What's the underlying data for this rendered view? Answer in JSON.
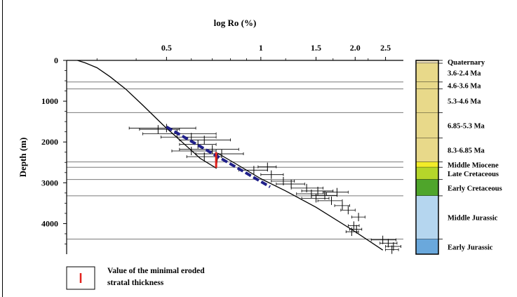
{
  "chart_data": {
    "type": "scatter",
    "title": "log Ro (%)",
    "ylabel": "Depth (m)",
    "x_scale": "log",
    "xlim": [
      0.24,
      2.85
    ],
    "ylim": [
      4750,
      0
    ],
    "x_ticks": [
      {
        "value": 0.5,
        "label": "0.5"
      },
      {
        "value": 1,
        "label": "1"
      },
      {
        "value": 1.5,
        "label": "1.5"
      },
      {
        "value": 2.0,
        "label": "2.0"
      },
      {
        "value": 2.5,
        "label": "2.5"
      }
    ],
    "y_ticks": [
      {
        "value": 0,
        "label": "0"
      },
      {
        "value": 1000,
        "label": "1000"
      },
      {
        "value": 2000,
        "label": "2000"
      },
      {
        "value": 3000,
        "label": "3000"
      },
      {
        "value": 4000,
        "label": "4000"
      }
    ],
    "horizontal_lines": [
      530,
      700,
      1280,
      2490,
      2620,
      2920,
      3320,
      4380
    ],
    "model_curve": [
      {
        "ro": 0.26,
        "depth": 0
      },
      {
        "ro": 0.275,
        "depth": 60
      },
      {
        "ro": 0.3,
        "depth": 180
      },
      {
        "ro": 0.33,
        "depth": 400
      },
      {
        "ro": 0.37,
        "depth": 700
      },
      {
        "ro": 0.42,
        "depth": 1100
      },
      {
        "ro": 0.49,
        "depth": 1600
      },
      {
        "ro": 0.56,
        "depth": 2000
      },
      {
        "ro": 0.64,
        "depth": 2400
      },
      {
        "ro": 0.72,
        "depth": 2640
      },
      {
        "ro": 0.73,
        "depth": 2280
      },
      {
        "ro": 0.83,
        "depth": 2530
      },
      {
        "ro": 1.0,
        "depth": 2900
      },
      {
        "ro": 1.2,
        "depth": 3200
      },
      {
        "ro": 1.5,
        "depth": 3600
      },
      {
        "ro": 2.0,
        "depth": 4200
      },
      {
        "ro": 2.45,
        "depth": 4650
      }
    ],
    "dashed_trend": [
      {
        "ro": 0.5,
        "depth": 1630
      },
      {
        "ro": 1.07,
        "depth": 3100
      }
    ],
    "eroded_marker": {
      "ro": 0.72,
      "depth_top": 2250,
      "depth_bottom": 2630
    },
    "measured_ro": [
      {
        "ro": 0.5,
        "depth": 1660,
        "ro_low": 0.38,
        "ro_high": 0.62
      },
      {
        "ro": 0.54,
        "depth": 1800,
        "ro_low": 0.42,
        "ro_high": 0.72
      },
      {
        "ro": 0.47,
        "depth": 1690,
        "ro_low": 0.41,
        "ro_high": 0.55
      },
      {
        "ro": 0.6,
        "depth": 1880,
        "ro_low": 0.48,
        "ro_high": 0.72
      },
      {
        "ro": 0.66,
        "depth": 1950,
        "ro_low": 0.55,
        "ro_high": 0.8
      },
      {
        "ro": 0.63,
        "depth": 2060,
        "ro_low": 0.55,
        "ro_high": 0.72
      },
      {
        "ro": 0.6,
        "depth": 2220,
        "ro_low": 0.52,
        "ro_high": 0.72
      },
      {
        "ro": 0.7,
        "depth": 2180,
        "ro_low": 0.55,
        "ro_high": 0.85
      },
      {
        "ro": 0.75,
        "depth": 2290,
        "ro_low": 0.62,
        "ro_high": 0.88
      },
      {
        "ro": 0.66,
        "depth": 2360,
        "ro_low": 0.58,
        "ro_high": 0.75
      },
      {
        "ro": 0.95,
        "depth": 2690,
        "ro_low": 0.85,
        "ro_high": 1.05
      },
      {
        "ro": 1.05,
        "depth": 2610,
        "ro_low": 0.98,
        "ro_high": 1.12
      },
      {
        "ro": 1.08,
        "depth": 2800,
        "ro_low": 1.0,
        "ro_high": 1.18
      },
      {
        "ro": 1.18,
        "depth": 2960,
        "ro_low": 1.08,
        "ro_high": 1.28
      },
      {
        "ro": 1.25,
        "depth": 3030,
        "ro_low": 1.12,
        "ro_high": 1.38
      },
      {
        "ro": 1.4,
        "depth": 3130,
        "ro_low": 1.25,
        "ro_high": 1.58
      },
      {
        "ro": 1.52,
        "depth": 3200,
        "ro_low": 1.35,
        "ro_high": 1.7
      },
      {
        "ro": 1.45,
        "depth": 3270,
        "ro_low": 1.3,
        "ro_high": 1.62
      },
      {
        "ro": 1.6,
        "depth": 3310,
        "ro_low": 1.45,
        "ro_high": 1.75
      },
      {
        "ro": 1.5,
        "depth": 3380,
        "ro_low": 1.35,
        "ro_high": 1.65
      },
      {
        "ro": 1.68,
        "depth": 3440,
        "ro_low": 1.52,
        "ro_high": 1.82
      },
      {
        "ro": 1.75,
        "depth": 3230,
        "ro_low": 1.58,
        "ro_high": 1.9
      },
      {
        "ro": 1.82,
        "depth": 3560,
        "ro_low": 1.72,
        "ro_high": 1.92
      },
      {
        "ro": 1.9,
        "depth": 3670,
        "ro_low": 1.8,
        "ro_high": 2.0
      },
      {
        "ro": 2.05,
        "depth": 3840,
        "ro_low": 1.95,
        "ro_high": 2.15
      },
      {
        "ro": 1.98,
        "depth": 4050,
        "ro_low": 1.9,
        "ro_high": 2.06
      },
      {
        "ro": 2.02,
        "depth": 4140,
        "ro_low": 1.92,
        "ro_high": 2.1
      },
      {
        "ro": 1.95,
        "depth": 4200,
        "ro_low": 1.87,
        "ro_high": 2.05
      },
      {
        "ro": 2.45,
        "depth": 4400,
        "ro_low": 2.25,
        "ro_high": 2.7
      },
      {
        "ro": 2.55,
        "depth": 4480,
        "ro_low": 2.4,
        "ro_high": 2.72
      },
      {
        "ro": 2.65,
        "depth": 4560,
        "ro_low": 2.5,
        "ro_high": 2.8
      },
      {
        "ro": 2.62,
        "depth": 4640,
        "ro_low": 2.5,
        "ro_high": 2.75
      }
    ]
  },
  "stratigraphy": [
    {
      "label": "Quaternary",
      "top": 0,
      "bottom": 70,
      "color": "#f3e5c0"
    },
    {
      "label": "3.6-2.4 Ma",
      "top": 70,
      "bottom": 530,
      "color": "#e8d98a"
    },
    {
      "label": "4.6-3.6 Ma",
      "top": 530,
      "bottom": 700,
      "color": "#e8d98a"
    },
    {
      "label": "5.3-4.6 Ma",
      "top": 700,
      "bottom": 1280,
      "color": "#e8d98a"
    },
    {
      "label": "6.85-5.3 Ma",
      "top": 1280,
      "bottom": 1900,
      "color": "#e8d98a"
    },
    {
      "label": "8.3-6.85 Ma",
      "top": 1900,
      "bottom": 2490,
      "color": "#e8d98a"
    },
    {
      "label": "Middle Miocene",
      "top": 2490,
      "bottom": 2620,
      "color": "#f2ec28"
    },
    {
      "label": "Late Cretaceous",
      "top": 2620,
      "bottom": 2920,
      "color": "#b5d62a"
    },
    {
      "label": "Early Cretaceous",
      "top": 2920,
      "bottom": 3320,
      "color": "#4fa52b"
    },
    {
      "label": "Middle Jurassic",
      "top": 3320,
      "bottom": 4380,
      "color": "#b5d6ef"
    },
    {
      "label": "Early Jurassic",
      "top": 4380,
      "bottom": 4750,
      "color": "#6aa8dc"
    }
  ],
  "legend": {
    "line1": "Value of the minimal eroded",
    "line2": "stratal thickness",
    "marker_color": "#e3211c"
  },
  "colors": {
    "model_line": "#000000",
    "dashed_trend": "#1f1f8a",
    "eroded_marker": "#e3211c",
    "data_points": "#000000"
  }
}
